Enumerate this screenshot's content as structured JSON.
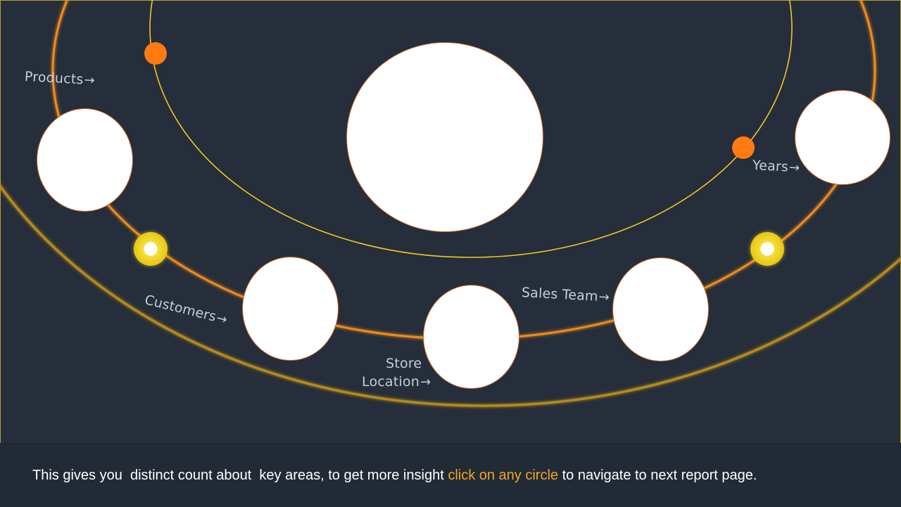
{
  "diagram": {
    "labels": {
      "products": "Products",
      "years": "Years",
      "customers": "Customers",
      "store_line1": "Store",
      "store_line2": "Location",
      "sales_team": "Sales Team",
      "arrow": "→"
    },
    "colors": {
      "background": "#252e3a",
      "orbit_inner": "#f3c623",
      "orbit_middle": "#f08a1e",
      "orbit_outer": "#b58a1e",
      "planet_orange": "#ff7a10",
      "planet_yellow": "#f4e03a"
    }
  },
  "footer": {
    "text_before": "This gives you  distinct count about  key areas, to get more insight ",
    "link_text": "click on any circle",
    "text_after": " to navigate to next report page."
  }
}
